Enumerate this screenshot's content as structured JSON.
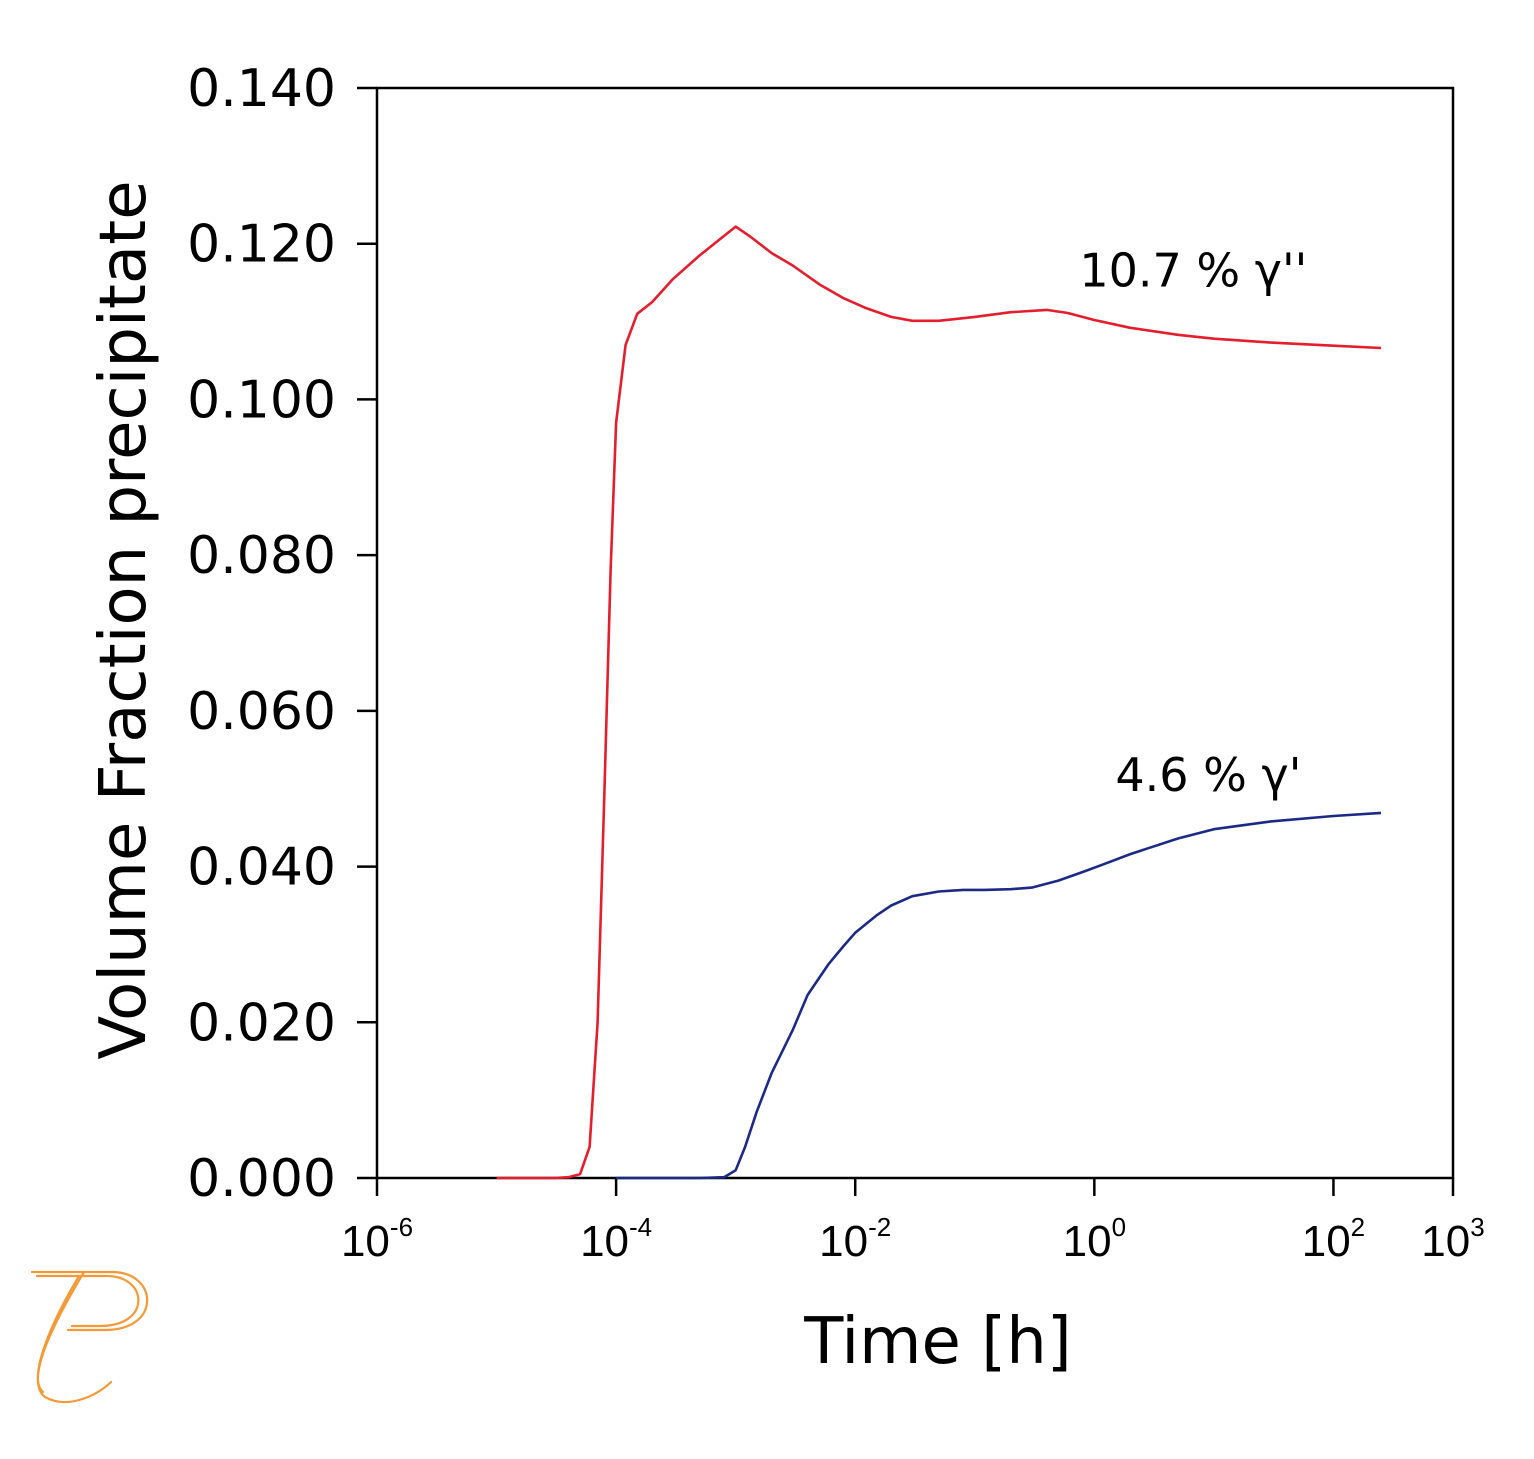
{
  "chart_data": {
    "type": "line",
    "xlabel": "Time [h]",
    "ylabel": "Volume Fraction precipitate",
    "x_scale": "log",
    "xlim": [
      1e-06,
      1000
    ],
    "ylim": [
      0,
      0.14
    ],
    "grid": false,
    "y_ticks": [
      "0.000",
      "0.020",
      "0.040",
      "0.060",
      "0.080",
      "0.100",
      "0.120",
      "0.140"
    ],
    "x_ticks": [
      {
        "base": "10",
        "exp": "-6",
        "value": 1e-06
      },
      {
        "base": "10",
        "exp": "-4",
        "value": 0.0001
      },
      {
        "base": "10",
        "exp": "-2",
        "value": 0.01
      },
      {
        "base": "10",
        "exp": "0",
        "value": 1
      },
      {
        "base": "10",
        "exp": "2",
        "value": 100
      },
      {
        "base": "10",
        "exp": "3",
        "value": 1000
      }
    ],
    "series": [
      {
        "color": "#e31e2d",
        "x": [
          1e-05,
          3e-05,
          4e-05,
          5e-05,
          6e-05,
          7e-05,
          8e-05,
          9e-05,
          0.0001,
          0.00012,
          0.00015,
          0.0002,
          0.0003,
          0.0005,
          0.0008,
          0.001,
          0.0013,
          0.002,
          0.003,
          0.005,
          0.008,
          0.012,
          0.02,
          0.03,
          0.05,
          0.1,
          0.2,
          0.4,
          0.6,
          1,
          2,
          5,
          10,
          30,
          100,
          250
        ],
        "y": [
          0.0,
          0.0,
          0.0001,
          0.0005,
          0.004,
          0.02,
          0.05,
          0.078,
          0.097,
          0.107,
          0.111,
          0.1125,
          0.1155,
          0.1185,
          0.121,
          0.1222,
          0.121,
          0.1188,
          0.1172,
          0.1148,
          0.113,
          0.1118,
          0.1106,
          0.1101,
          0.1101,
          0.1106,
          0.1112,
          0.1115,
          0.1111,
          0.1102,
          0.1092,
          0.1083,
          0.1078,
          0.1073,
          0.1069,
          0.1066
        ]
      },
      {
        "color": "#1c2a85",
        "x": [
          0.0001,
          0.0005,
          0.0008,
          0.001,
          0.0012,
          0.0015,
          0.002,
          0.003,
          0.004,
          0.006,
          0.008,
          0.01,
          0.015,
          0.02,
          0.03,
          0.05,
          0.08,
          0.12,
          0.2,
          0.3,
          0.5,
          0.8,
          1.2,
          2,
          5,
          10,
          30,
          100,
          250
        ],
        "y": [
          0.0,
          0.0,
          0.0001,
          0.001,
          0.004,
          0.0085,
          0.0135,
          0.019,
          0.0235,
          0.0275,
          0.0298,
          0.0315,
          0.0337,
          0.035,
          0.0362,
          0.0368,
          0.037,
          0.037,
          0.0371,
          0.0373,
          0.0382,
          0.0393,
          0.0403,
          0.0416,
          0.0436,
          0.0448,
          0.0458,
          0.0465,
          0.0469
        ]
      }
    ],
    "annotations": [
      {
        "text": "10.7 % γ''",
        "x": 0.75,
        "y": 0.1145,
        "color": "#000000"
      },
      {
        "text": "4.6 % γ'",
        "x": 1.5,
        "y": 0.0497,
        "color": "#000000"
      }
    ]
  },
  "logo": {
    "color": "#f29a38",
    "icon": "pandat-logo-icon"
  }
}
